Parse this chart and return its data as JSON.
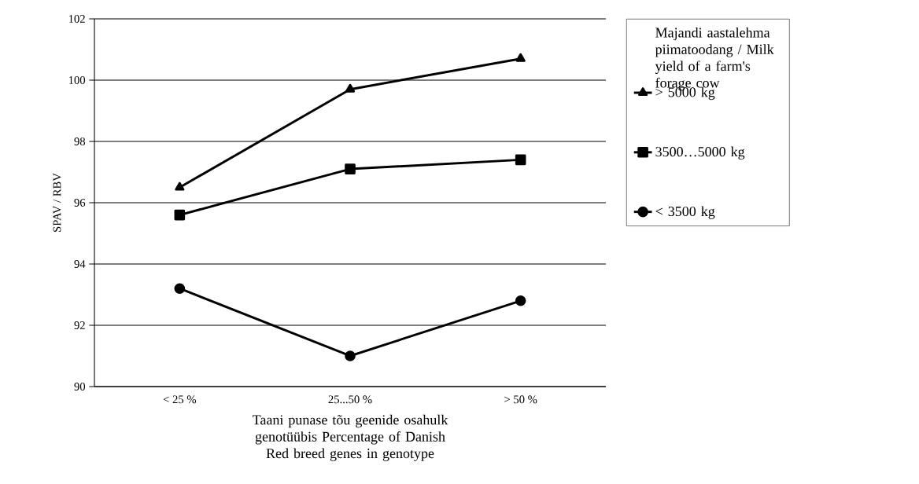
{
  "chart_data": {
    "type": "line",
    "xlabel": "Taani punase tõu geenide osahulk genotüübis Percentage of Danish Red breed genes in genotype",
    "ylabel": "SPAV / RBV",
    "legend_title": "Majandi aastalehma piimatoodang / Milk yield of a farm's forage cow",
    "categories": [
      "< 25 %",
      "25...50 %",
      "> 50 %"
    ],
    "series": [
      {
        "name": "> 5000 kg",
        "color": "#000000",
        "marker": "triangle",
        "values": [
          96.5,
          99.7,
          100.7
        ]
      },
      {
        "name": "3500…5000 kg",
        "color": "#000000",
        "marker": "square",
        "values": [
          95.6,
          97.1,
          97.4
        ]
      },
      {
        "name": "< 3500 kg",
        "color": "#000000",
        "marker": "circle",
        "values": [
          93.2,
          91.0,
          92.8
        ]
      }
    ],
    "ylim": [
      90,
      102
    ],
    "yticks": [
      90,
      92,
      94,
      96,
      98,
      100,
      102
    ],
    "grid": "y",
    "legend": "right",
    "line_style": "solid"
  }
}
